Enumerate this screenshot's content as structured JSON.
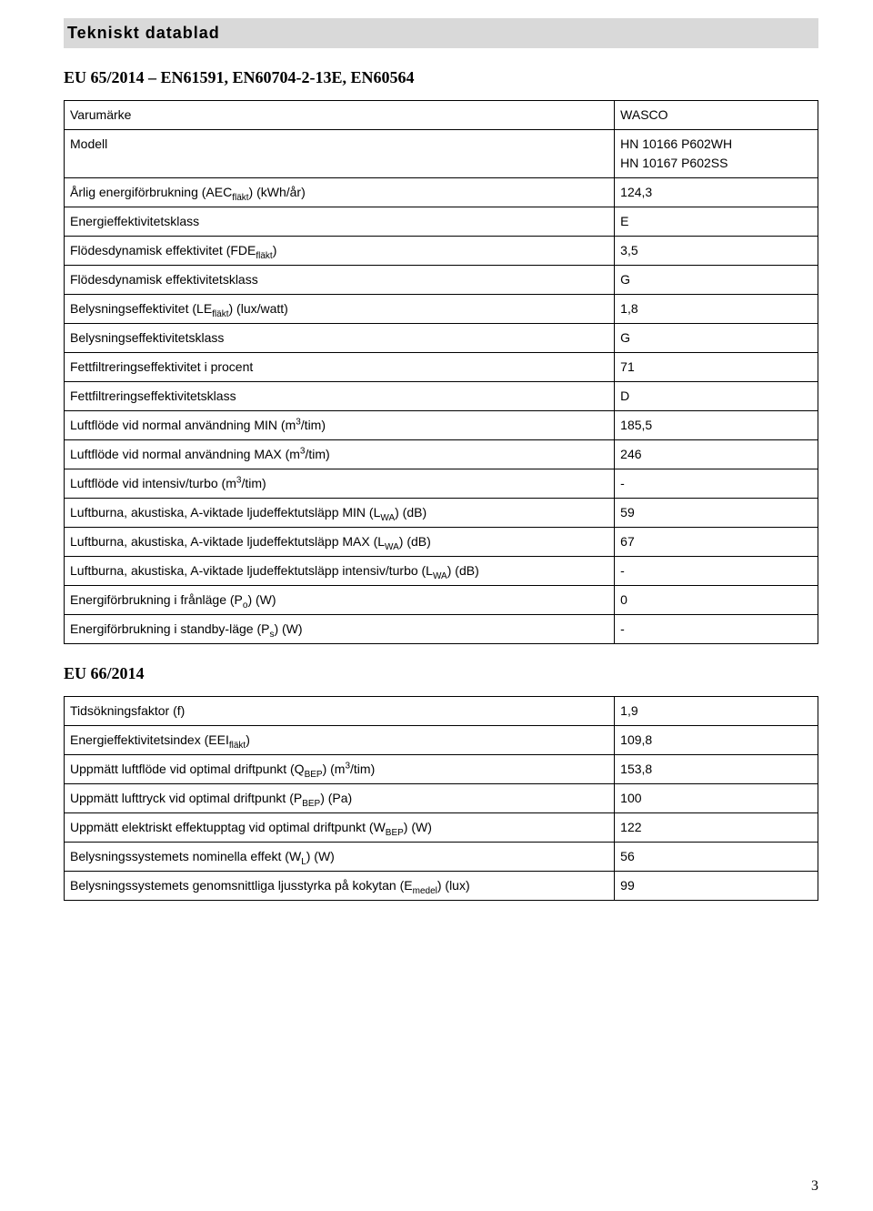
{
  "title": "Tekniskt datablad",
  "section1_heading": "EU 65/2014 – EN61591, EN60704-2-13E, EN60564",
  "section2_heading": "EU 66/2014",
  "page_number": "3",
  "t1": {
    "rows": [
      {
        "label_html": "Varumärke",
        "value": "WASCO"
      },
      {
        "label_html": "Modell",
        "value": "HN 10166 P602WH\nHN 10167 P602SS"
      },
      {
        "label_html": "Årlig energiförbrukning (AEC<sub>fläkt</sub>) (kWh/år)",
        "value": "124,3"
      },
      {
        "label_html": "Energieffektivitetsklass",
        "value": "E"
      },
      {
        "label_html": "Flödesdynamisk effektivitet (FDE<sub>fläkt</sub>)",
        "value": "3,5"
      },
      {
        "label_html": "Flödesdynamisk effektivitetsklass",
        "value": "G"
      },
      {
        "label_html": "Belysningseffektivitet (LE<sub>fläkt</sub>) (lux/watt)",
        "value": "1,8"
      },
      {
        "label_html": "Belysningseffektivitetsklass",
        "value": "G"
      },
      {
        "label_html": "Fettfiltreringseffektivitet i procent",
        "value": "71"
      },
      {
        "label_html": "Fettfiltreringseffektivitetsklass",
        "value": "D"
      },
      {
        "label_html": "Luftflöde vid normal användning MIN (m<sup>3</sup>/tim)",
        "value": "185,5"
      },
      {
        "label_html": "Luftflöde vid normal användning MAX (m<sup>3</sup>/tim)",
        "value": "246"
      },
      {
        "label_html": "Luftflöde vid intensiv/turbo (m<sup>3</sup>/tim)",
        "value": "-"
      },
      {
        "label_html": "Luftburna, akustiska, A-viktade ljudeffektutsläpp MIN (L<sub>WA</sub>) (dB)",
        "value": "59"
      },
      {
        "label_html": "Luftburna, akustiska, A-viktade ljudeffektutsläpp MAX (L<sub>WA</sub>) (dB)",
        "value": "67"
      },
      {
        "label_html": "Luftburna, akustiska, A-viktade ljudeffektutsläpp intensiv/turbo (L<sub>WA</sub>) (dB)",
        "value": "-"
      },
      {
        "label_html": "Energiförbrukning i frånläge (P<sub>o</sub>) (W)",
        "value": "0"
      },
      {
        "label_html": "Energiförbrukning i standby-läge (P<sub>s</sub>) (W)",
        "value": "-"
      }
    ]
  },
  "t2": {
    "rows": [
      {
        "label_html": "Tidsökningsfaktor (f)",
        "value": "1,9"
      },
      {
        "label_html": "Energieffektivitetsindex (EEI<sub>fläkt</sub>)",
        "value": "109,8"
      },
      {
        "label_html": "Uppmätt luftflöde vid optimal driftpunkt (Q<sub>BEP</sub>) (m<sup>3</sup>/tim)",
        "value": "153,8"
      },
      {
        "label_html": "Uppmätt lufttryck vid optimal driftpunkt (P<sub>BEP</sub>) (Pa)",
        "value": "100"
      },
      {
        "label_html": "Uppmätt elektriskt effektupptag vid optimal driftpunkt (W<sub>BEP</sub>) (W)",
        "value": "122"
      },
      {
        "label_html": "Belysningssystemets nominella effekt (W<sub>L</sub>) (W)",
        "value": "56"
      },
      {
        "label_html": "Belysningssystemets genomsnittliga ljusstyrka på kokytan (E<sub>medel</sub>) (lux)",
        "value": "99"
      }
    ]
  }
}
